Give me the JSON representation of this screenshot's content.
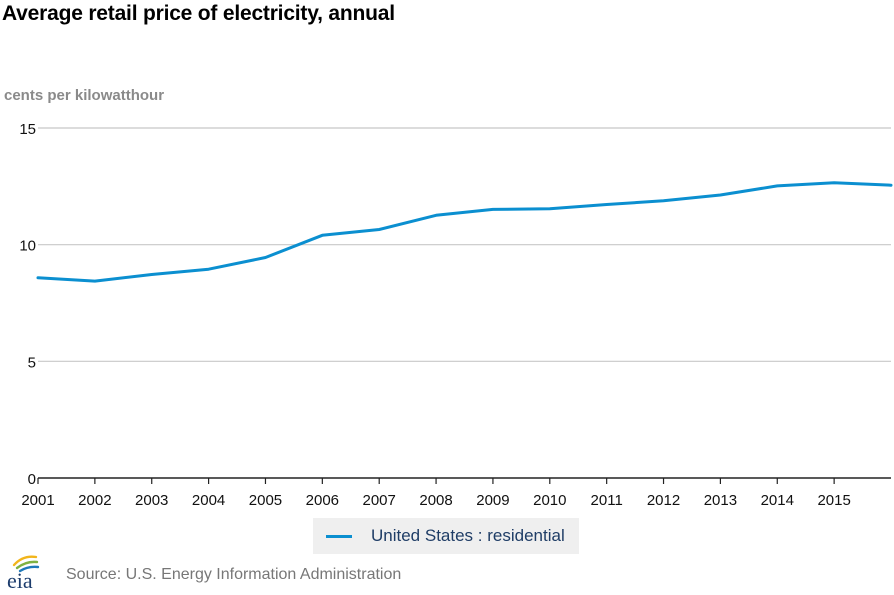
{
  "chart_data": {
    "type": "line",
    "title": "Average retail price of electricity, annual",
    "ylabel": "cents per kilowatthour",
    "xlabel": "",
    "x": [
      2001,
      2002,
      2003,
      2004,
      2005,
      2006,
      2007,
      2008,
      2009,
      2010,
      2011,
      2012,
      2013,
      2014,
      2015,
      2016
    ],
    "x_tick_labels": [
      "2001",
      "2002",
      "2003",
      "2004",
      "2005",
      "2006",
      "2007",
      "2008",
      "2009",
      "2010",
      "2011",
      "2012",
      "2013",
      "2014",
      "2015"
    ],
    "y_ticks": [
      0,
      5,
      10,
      15
    ],
    "ylim": [
      0,
      15
    ],
    "xlim": [
      2001,
      2016
    ],
    "grid": "horizontal",
    "series": [
      {
        "name": "United States : residential",
        "color": "#0b8fd0",
        "values": [
          8.58,
          8.44,
          8.72,
          8.95,
          9.45,
          10.4,
          10.65,
          11.26,
          11.51,
          11.54,
          11.72,
          11.88,
          12.13,
          12.52,
          12.65,
          12.55
        ]
      }
    ],
    "legend_position": "bottom-center"
  },
  "legend": {
    "label": "United States : residential"
  },
  "footer": {
    "logo_text": "eia",
    "source": "Source: U.S. Energy Information Administration"
  }
}
